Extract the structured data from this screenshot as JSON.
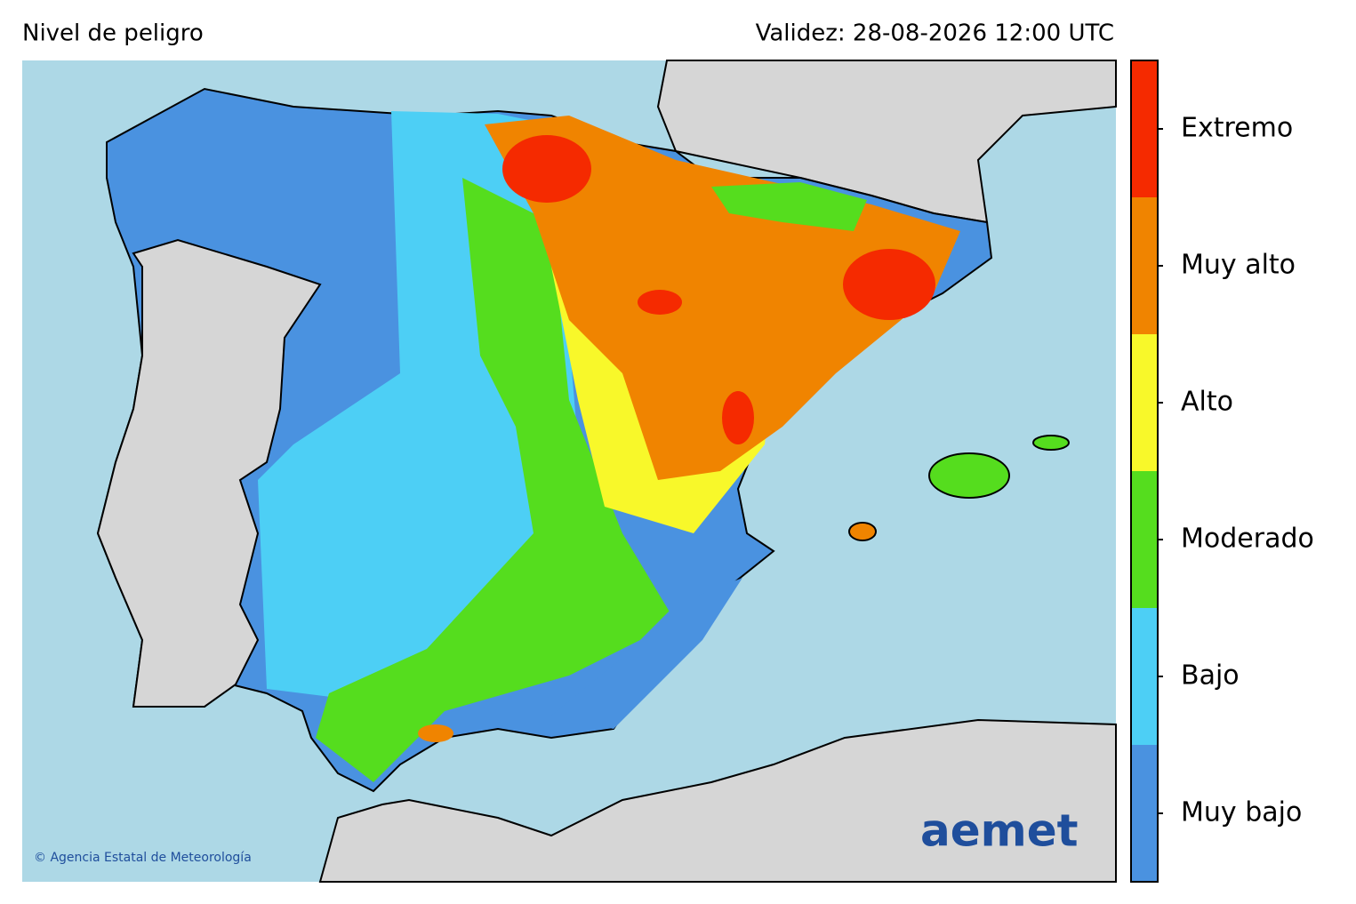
{
  "header": {
    "title": "Nivel de peligro",
    "validity": "Validez: 28-08-2026 12:00 UTC"
  },
  "legend": {
    "levels": [
      {
        "label": "Muy bajo",
        "color": "#4a92e0"
      },
      {
        "label": "Bajo",
        "color": "#4dcff5"
      },
      {
        "label": "Moderado",
        "color": "#55dd1e"
      },
      {
        "label": "Alto",
        "color": "#f8f82a"
      },
      {
        "label": "Muy alto",
        "color": "#f08400"
      },
      {
        "label": "Extremo",
        "color": "#f52a00"
      }
    ]
  },
  "credit": "© Agencia Estatal de Meteorología",
  "logo": "aemet"
}
